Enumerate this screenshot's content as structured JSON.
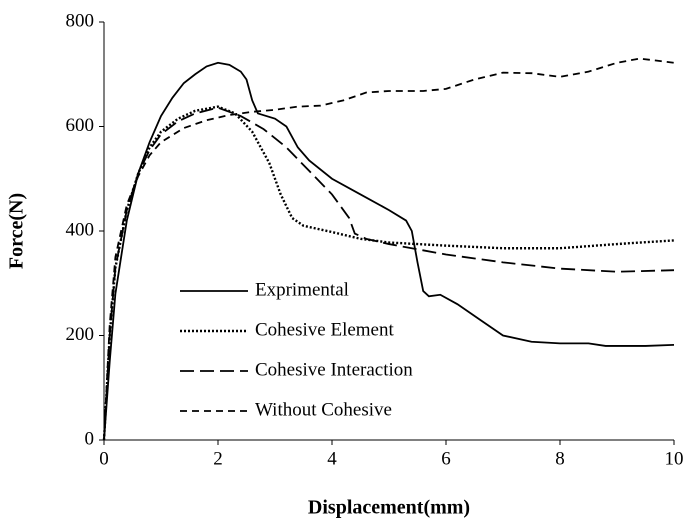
{
  "chart_data": {
    "type": "line",
    "x_label": "Displacement(mm)",
    "y_label": "Force(N)",
    "xlim": [
      0,
      10
    ],
    "xticks": [
      0,
      2,
      4,
      6,
      8,
      10
    ],
    "ylim": [
      0,
      800
    ],
    "yticks": [
      0,
      200,
      400,
      600,
      800
    ],
    "grid": false,
    "legend_position": "inside",
    "series": [
      {
        "name": "Exprimental",
        "color": "#000000",
        "line_style": "solid",
        "x": [
          0,
          0.1,
          0.2,
          0.4,
          0.6,
          0.8,
          1.0,
          1.2,
          1.4,
          1.6,
          1.8,
          2.0,
          2.2,
          2.4,
          2.5,
          2.6,
          2.7,
          3.0,
          3.2,
          3.4,
          3.6,
          4.0,
          4.5,
          5.0,
          5.3,
          5.4,
          5.5,
          5.6,
          5.7,
          5.9,
          6.2,
          6.6,
          7.0,
          7.5,
          8.0,
          8.5,
          8.8,
          9.0,
          9.5,
          10
        ],
        "values": [
          0,
          150,
          280,
          420,
          510,
          570,
          620,
          655,
          683,
          700,
          715,
          722,
          718,
          705,
          690,
          650,
          625,
          615,
          600,
          560,
          535,
          500,
          470,
          440,
          420,
          400,
          340,
          285,
          275,
          278,
          260,
          230,
          200,
          188,
          185,
          185,
          180,
          180,
          180,
          182
        ]
      },
      {
        "name": "Cohesive Element",
        "color": "#000000",
        "line_style": "dotted",
        "x": [
          0,
          0.1,
          0.2,
          0.4,
          0.6,
          0.8,
          1.0,
          1.3,
          1.6,
          2.0,
          2.3,
          2.6,
          2.9,
          3.1,
          3.3,
          3.5,
          4.0,
          4.5,
          5.0,
          6.0,
          7.0,
          8.0,
          9.0,
          10
        ],
        "values": [
          0,
          200,
          330,
          440,
          510,
          560,
          590,
          615,
          630,
          638,
          625,
          590,
          530,
          470,
          425,
          410,
          398,
          385,
          378,
          372,
          367,
          367,
          375,
          382
        ]
      },
      {
        "name": "Cohesive Interaction",
        "color": "#000000",
        "line_style": "long-dash",
        "x": [
          0,
          0.1,
          0.2,
          0.4,
          0.6,
          0.8,
          1.0,
          1.3,
          1.6,
          2.0,
          2.4,
          2.8,
          3.2,
          3.6,
          4.0,
          4.3,
          4.4,
          4.6,
          5.0,
          6.0,
          7.0,
          8.0,
          9.0,
          10
        ],
        "values": [
          0,
          200,
          330,
          440,
          510,
          555,
          585,
          610,
          625,
          636,
          620,
          595,
          560,
          515,
          470,
          425,
          395,
          385,
          375,
          355,
          340,
          328,
          322,
          325
        ]
      },
      {
        "name": "Without Cohesive",
        "color": "#000000",
        "line_style": "dashed",
        "x": [
          0,
          0.1,
          0.2,
          0.4,
          0.6,
          0.8,
          1.0,
          1.4,
          1.8,
          2.2,
          2.6,
          3.0,
          3.4,
          3.8,
          4.2,
          4.6,
          5.0,
          5.6,
          6.0,
          6.5,
          7.0,
          7.5,
          8.0,
          8.5,
          9.0,
          9.4,
          10
        ],
        "values": [
          0,
          220,
          350,
          450,
          505,
          545,
          570,
          597,
          612,
          622,
          628,
          632,
          638,
          640,
          650,
          665,
          668,
          668,
          672,
          690,
          703,
          702,
          695,
          705,
          722,
          730,
          722
        ]
      }
    ]
  }
}
